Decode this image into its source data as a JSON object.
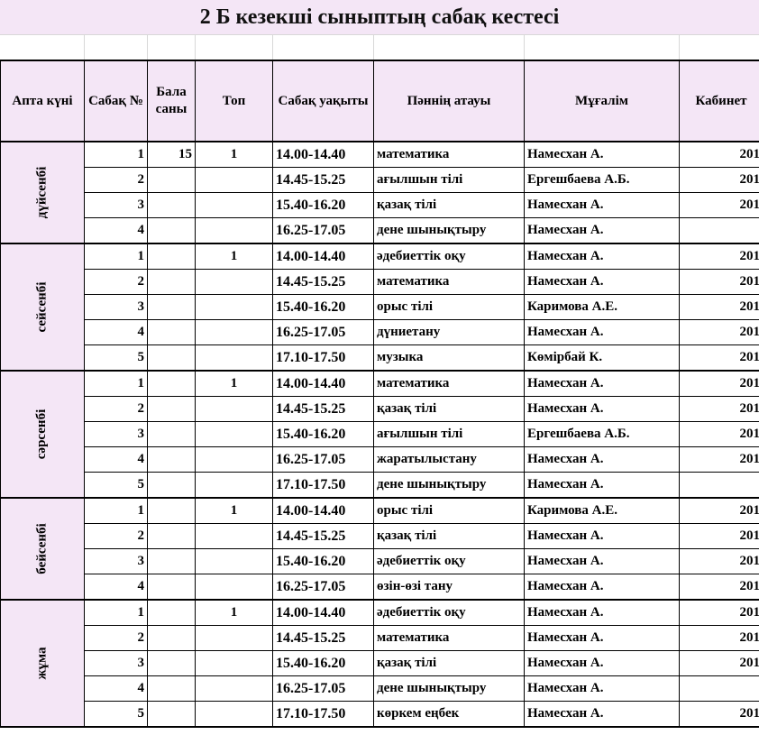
{
  "title": "2 Б кезекші сыныптың сабақ кестесі",
  "headers": {
    "day": "Апта күні",
    "lesson_no": "Сабақ №",
    "children": "Бала саны",
    "group": "Топ",
    "time": "Сабақ уақыты",
    "subject": "Пәннің атауы",
    "teacher": "Мұғалім",
    "room": "Кабинет"
  },
  "days": [
    {
      "name": "дүйсенбі",
      "lessons": [
        {
          "no": "1",
          "children": "15",
          "group": "1",
          "time": "14.00-14.40",
          "subject": "математика",
          "teacher": "Намесхан А.",
          "room": "201"
        },
        {
          "no": "2",
          "children": "",
          "group": "",
          "time": "14.45-15.25",
          "subject": "ағылшын тілі",
          "teacher": "Ергешбаева А.Б.",
          "room": "201"
        },
        {
          "no": "3",
          "children": "",
          "group": "",
          "time": "15.40-16.20",
          "subject": "қазақ тілі",
          "teacher": "Намесхан А.",
          "room": "201"
        },
        {
          "no": "4",
          "children": "",
          "group": "",
          "time": "16.25-17.05",
          "subject": "дене шынықтыру",
          "teacher": "Намесхан А.",
          "room": ""
        }
      ]
    },
    {
      "name": "сейсенбі",
      "lessons": [
        {
          "no": "1",
          "children": "",
          "group": "1",
          "time": "14.00-14.40",
          "subject": "әдебиеттік оқу",
          "teacher": "Намесхан А.",
          "room": "201"
        },
        {
          "no": "2",
          "children": "",
          "group": "",
          "time": "14.45-15.25",
          "subject": "математика",
          "teacher": "Намесхан А.",
          "room": "201"
        },
        {
          "no": "3",
          "children": "",
          "group": "",
          "time": "15.40-16.20",
          "subject": "орыс тілі",
          "teacher": "Каримова А.Е.",
          "room": "201"
        },
        {
          "no": "4",
          "children": "",
          "group": "",
          "time": "16.25-17.05",
          "subject": "дүниетану",
          "teacher": "Намесхан А.",
          "room": "201"
        },
        {
          "no": "5",
          "children": "",
          "group": "",
          "time": "17.10-17.50",
          "subject": "музыка",
          "teacher": "Көмірбай К.",
          "room": "201"
        }
      ]
    },
    {
      "name": "сәрсенбі",
      "lessons": [
        {
          "no": "1",
          "children": "",
          "group": "1",
          "time": "14.00-14.40",
          "subject": "математика",
          "teacher": "Намесхан А.",
          "room": "201"
        },
        {
          "no": "2",
          "children": "",
          "group": "",
          "time": "14.45-15.25",
          "subject": "қазақ тілі",
          "teacher": "Намесхан А.",
          "room": "201"
        },
        {
          "no": "3",
          "children": "",
          "group": "",
          "time": "15.40-16.20",
          "subject": "ағылшын тілі",
          "teacher": "Ергешбаева А.Б.",
          "room": "201"
        },
        {
          "no": "4",
          "children": "",
          "group": "",
          "time": "16.25-17.05",
          "subject": "жаратылыстану",
          "teacher": "Намесхан А.",
          "room": "201"
        },
        {
          "no": "5",
          "children": "",
          "group": "",
          "time": "17.10-17.50",
          "subject": "дене шынықтыру",
          "teacher": "Намесхан А.",
          "room": ""
        }
      ]
    },
    {
      "name": "бейсенбі",
      "lessons": [
        {
          "no": "1",
          "children": "",
          "group": "1",
          "time": "14.00-14.40",
          "subject": "орыс тілі",
          "teacher": "Каримова А.Е.",
          "room": "201"
        },
        {
          "no": "2",
          "children": "",
          "group": "",
          "time": "14.45-15.25",
          "subject": "қазақ тілі",
          "teacher": "Намесхан А.",
          "room": "201"
        },
        {
          "no": "3",
          "children": "",
          "group": "",
          "time": "15.40-16.20",
          "subject": "әдебиеттік оқу",
          "teacher": "Намесхан А.",
          "room": "201"
        },
        {
          "no": "4",
          "children": "",
          "group": "",
          "time": "16.25-17.05",
          "subject": "өзін-өзі тану",
          "teacher": "Намесхан А.",
          "room": "201"
        }
      ]
    },
    {
      "name": "жұма",
      "lessons": [
        {
          "no": "1",
          "children": "",
          "group": "1",
          "time": "14.00-14.40",
          "subject": "әдебиеттік оқу",
          "teacher": "Намесхан А.",
          "room": "201"
        },
        {
          "no": "2",
          "children": "",
          "group": "",
          "time": "14.45-15.25",
          "subject": "математика",
          "teacher": "Намесхан А.",
          "room": "201"
        },
        {
          "no": "3",
          "children": "",
          "group": "",
          "time": "15.40-16.20",
          "subject": "қазақ тілі",
          "teacher": "Намесхан А.",
          "room": "201"
        },
        {
          "no": "4",
          "children": "",
          "group": "",
          "time": "16.25-17.05",
          "subject": "дене шынықтыру",
          "teacher": "Намесхан А.",
          "room": ""
        },
        {
          "no": "5",
          "children": "",
          "group": "",
          "time": "17.10-17.50",
          "subject": "көркем еңбек",
          "teacher": "Намесхан А.",
          "room": "201"
        }
      ]
    }
  ]
}
